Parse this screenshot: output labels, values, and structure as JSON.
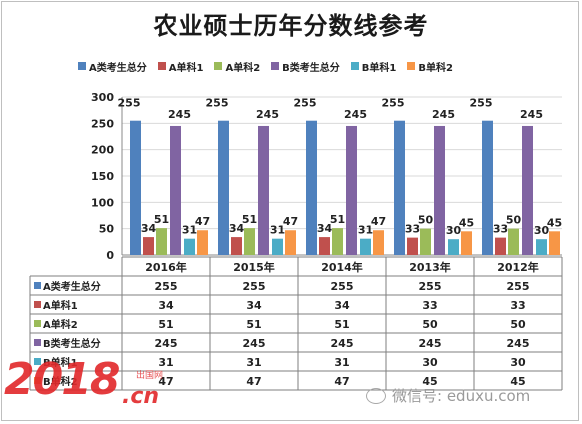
{
  "chart_data": {
    "type": "bar",
    "title": "农业硕士历年分数线参考",
    "categories": [
      "2016年",
      "2015年",
      "2014年",
      "2013年",
      "2012年"
    ],
    "ylim": [
      0,
      300
    ],
    "yticks": [
      0,
      50,
      100,
      150,
      200,
      250,
      300
    ],
    "grid": true,
    "legend_position": "top",
    "series": [
      {
        "name": "A类考生总分",
        "color": "#4f81bd",
        "values": [
          255,
          255,
          255,
          255,
          255
        ]
      },
      {
        "name": "A单科1",
        "color": "#c0504d",
        "values": [
          34,
          34,
          34,
          33,
          33
        ]
      },
      {
        "name": "A单科2",
        "color": "#9bbb59",
        "values": [
          51,
          51,
          51,
          50,
          50
        ]
      },
      {
        "name": "B类考生总分",
        "color": "#8064a2",
        "values": [
          245,
          245,
          245,
          245,
          245
        ]
      },
      {
        "name": "B单科1",
        "color": "#4bacc6",
        "values": [
          31,
          31,
          31,
          30,
          30
        ]
      },
      {
        "name": "B单科2",
        "color": "#f79646",
        "values": [
          47,
          47,
          47,
          45,
          45
        ]
      }
    ]
  },
  "watermarks": {
    "left_number": "2018",
    "left_suffix": ".cn",
    "left_small": "出国网",
    "right_text": "微信号: eduxu.com"
  }
}
